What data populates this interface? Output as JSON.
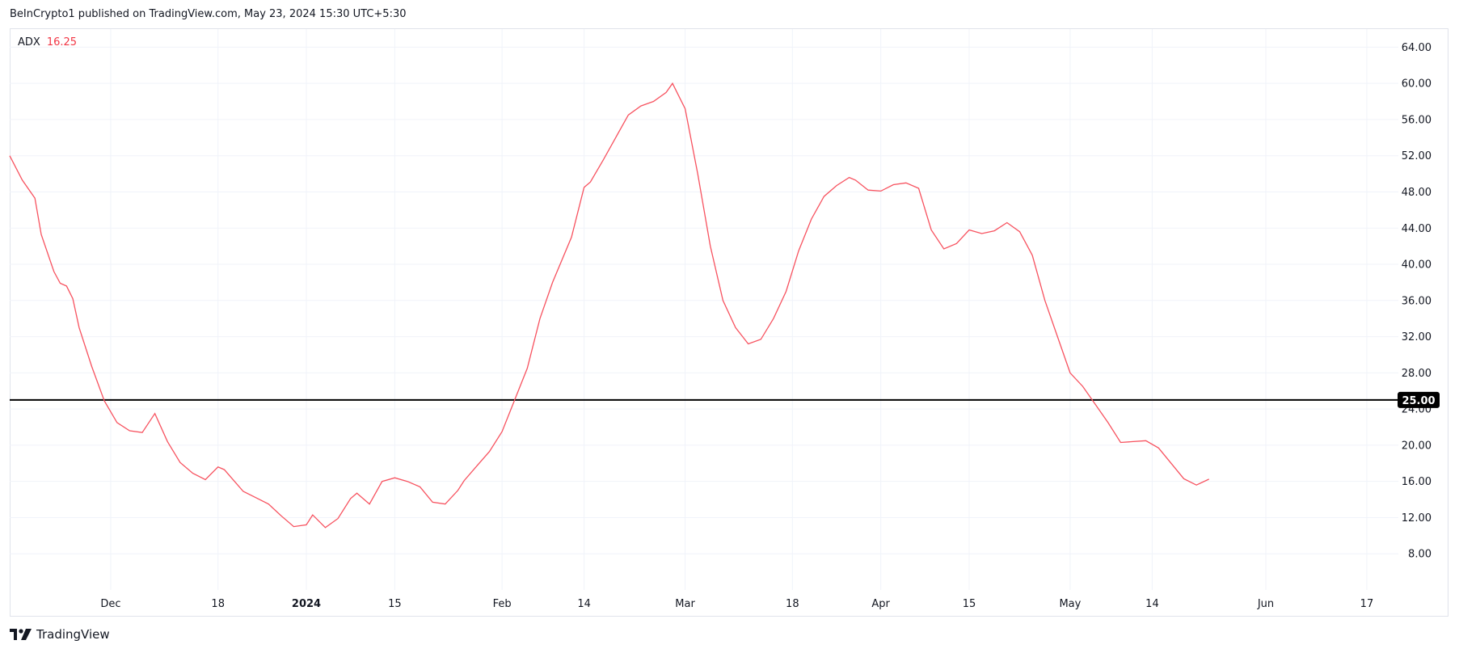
{
  "header": {
    "published": "BeInCrypto1 published on TradingView.com, May 23, 2024 15:30 UTC+5:30"
  },
  "legend": {
    "name": "ADX",
    "value": "16.25"
  },
  "footer": {
    "brand": "TradingView"
  },
  "colors": {
    "line": "#f7525f",
    "threshold": "#000000",
    "grid": "#f0f3fa",
    "badge_bg": "#000000"
  },
  "chart_data": {
    "type": "line",
    "ylim": [
      4,
      66
    ],
    "y_ticks": [
      "64.00",
      "60.00",
      "56.00",
      "52.00",
      "48.00",
      "44.00",
      "40.00",
      "36.00",
      "32.00",
      "28.00",
      "24.00",
      "20.00",
      "16.00",
      "12.00",
      "8.00"
    ],
    "x_ticks": [
      {
        "label": "Dec",
        "date": "2023-12-01",
        "bold": false
      },
      {
        "label": "18",
        "date": "2023-12-18",
        "bold": false
      },
      {
        "label": "2024",
        "date": "2024-01-01",
        "bold": true
      },
      {
        "label": "15",
        "date": "2024-01-15",
        "bold": false
      },
      {
        "label": "Feb",
        "date": "2024-02-01",
        "bold": false
      },
      {
        "label": "14",
        "date": "2024-02-14",
        "bold": false
      },
      {
        "label": "Mar",
        "date": "2024-03-01",
        "bold": false
      },
      {
        "label": "18",
        "date": "2024-03-18",
        "bold": false
      },
      {
        "label": "Apr",
        "date": "2024-04-01",
        "bold": false
      },
      {
        "label": "15",
        "date": "2024-04-15",
        "bold": false
      },
      {
        "label": "May",
        "date": "2024-05-01",
        "bold": false
      },
      {
        "label": "14",
        "date": "2024-05-14",
        "bold": false
      },
      {
        "label": "Jun",
        "date": "2024-06-01",
        "bold": false
      },
      {
        "label": "17",
        "date": "2024-06-17",
        "bold": false
      }
    ],
    "threshold": {
      "value": 25,
      "label": "25.00"
    },
    "series": [
      {
        "x": [
          "2023-11-15",
          "2023-11-17",
          "2023-11-19",
          "2023-11-20",
          "2023-11-22",
          "2023-11-23",
          "2023-11-24",
          "2023-11-25",
          "2023-11-26",
          "2023-11-28",
          "2023-11-30",
          "2023-12-02",
          "2023-12-04",
          "2023-12-06",
          "2023-12-08",
          "2023-12-10",
          "2023-12-12",
          "2023-12-14",
          "2023-12-16",
          "2023-12-18",
          "2023-12-19",
          "2023-12-20",
          "2023-12-22",
          "2023-12-24",
          "2023-12-26",
          "2023-12-28",
          "2023-12-30",
          "2024-01-01",
          "2024-01-02",
          "2024-01-04",
          "2024-01-06",
          "2024-01-08",
          "2024-01-09",
          "2024-01-11",
          "2024-01-13",
          "2024-01-15",
          "2024-01-17",
          "2024-01-19",
          "2024-01-21",
          "2024-01-23",
          "2024-01-25",
          "2024-01-26",
          "2024-01-28",
          "2024-01-30",
          "2024-02-01",
          "2024-02-03",
          "2024-02-05",
          "2024-02-07",
          "2024-02-09",
          "2024-02-12",
          "2024-02-14",
          "2024-02-15",
          "2024-02-17",
          "2024-02-19",
          "2024-02-21",
          "2024-02-23",
          "2024-02-25",
          "2024-02-27",
          "2024-02-28",
          "2024-03-01",
          "2024-03-03",
          "2024-03-05",
          "2024-03-07",
          "2024-03-09",
          "2024-03-11",
          "2024-03-13",
          "2024-03-15",
          "2024-03-17",
          "2024-03-19",
          "2024-03-21",
          "2024-03-23",
          "2024-03-25",
          "2024-03-27",
          "2024-03-28",
          "2024-03-30",
          "2024-04-01",
          "2024-04-03",
          "2024-04-05",
          "2024-04-07",
          "2024-04-09",
          "2024-04-11",
          "2024-04-13",
          "2024-04-15",
          "2024-04-17",
          "2024-04-19",
          "2024-04-21",
          "2024-04-23",
          "2024-04-25",
          "2024-04-27",
          "2024-04-29",
          "2024-05-01",
          "2024-05-03",
          "2024-05-05",
          "2024-05-07",
          "2024-05-09",
          "2024-05-11",
          "2024-05-13",
          "2024-05-15",
          "2024-05-17",
          "2024-05-19",
          "2024-05-21",
          "2024-05-23"
        ],
        "values": [
          52.0,
          49.3,
          47.3,
          43.3,
          39.2,
          37.9,
          37.6,
          36.2,
          33.0,
          28.7,
          24.9,
          22.5,
          21.6,
          21.4,
          23.5,
          20.4,
          18.1,
          16.9,
          16.2,
          17.6,
          17.3,
          16.5,
          14.9,
          14.2,
          13.5,
          12.2,
          11.0,
          11.2,
          12.3,
          10.9,
          11.9,
          14.1,
          14.7,
          13.5,
          16.0,
          16.4,
          16.0,
          15.4,
          13.7,
          13.5,
          15.0,
          16.1,
          17.7,
          19.3,
          21.5,
          25.0,
          28.5,
          34.0,
          38.0,
          43.0,
          48.5,
          49.1,
          51.5,
          54.0,
          56.5,
          57.5,
          58.0,
          59.0,
          60.0,
          57.2,
          50.0,
          42.0,
          36.0,
          33.0,
          31.2,
          31.7,
          34.0,
          37.0,
          41.5,
          45.0,
          47.5,
          48.7,
          49.6,
          49.3,
          48.2,
          48.1,
          48.8,
          49.0,
          48.4,
          43.8,
          41.7,
          42.3,
          43.8,
          43.4,
          43.7,
          44.6,
          43.6,
          41.0,
          36.0,
          32.0,
          28.0,
          26.5,
          24.5,
          22.5,
          20.3,
          20.4,
          20.5,
          19.7,
          18.0,
          16.3,
          15.6,
          16.25
        ]
      }
    ]
  }
}
